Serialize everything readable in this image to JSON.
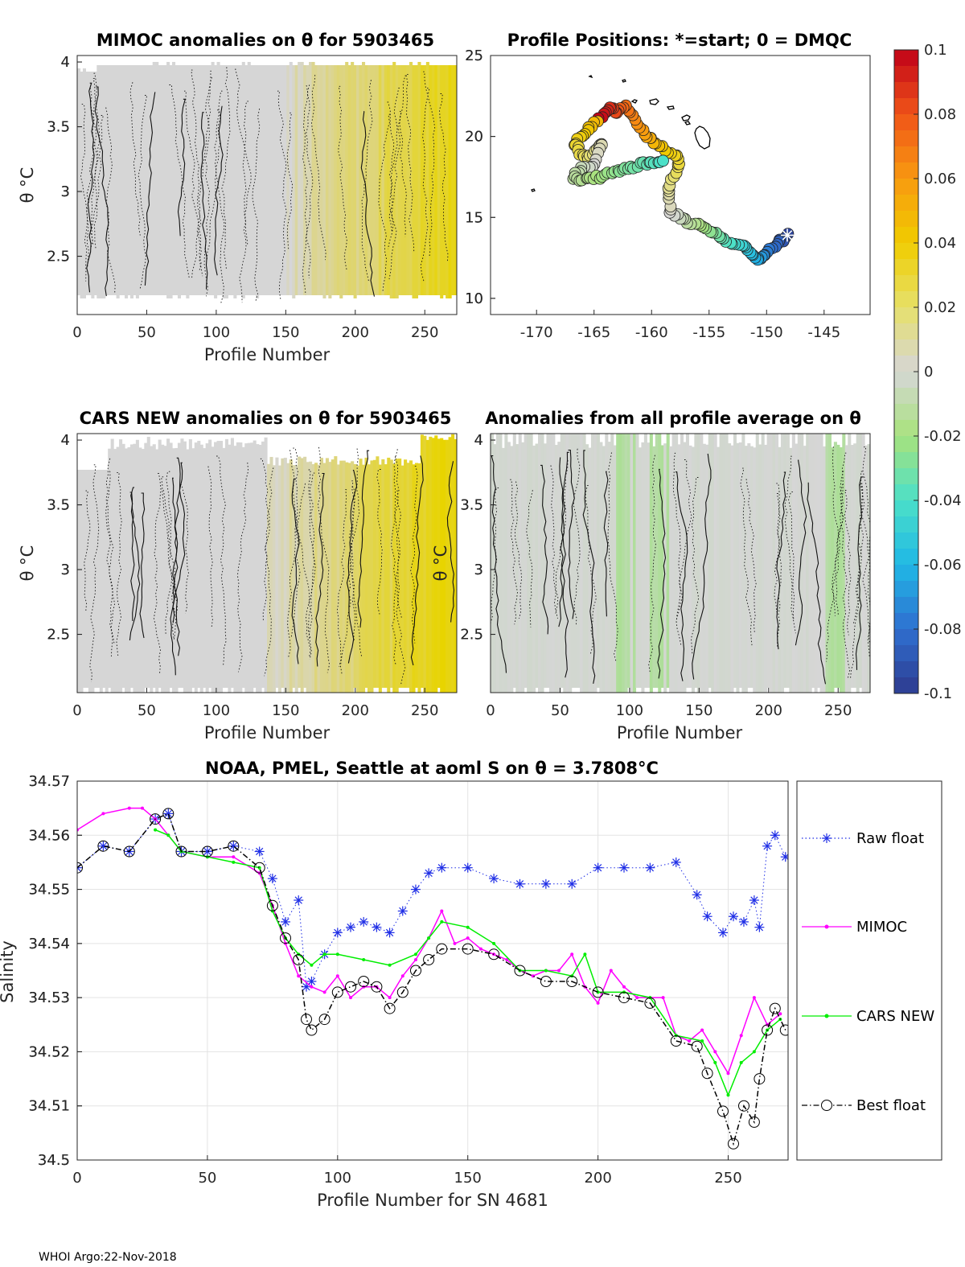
{
  "footer": "WHOI Argo:22-Nov-2018",
  "colors": {
    "raw": "#1f2ee6",
    "mimoc": "#ff00ff",
    "cars": "#00ee00",
    "best": "#000000",
    "field_neutral": "#d6d6d6",
    "field_warm": "#e8d400",
    "field_cool": "#a4e08a",
    "grid": "#e3e3e3",
    "axis": "#262626"
  },
  "colorbar": {
    "ticks": [
      "0.1",
      "0.08",
      "0.06",
      "0.04",
      "0.02",
      "0",
      "-0.02",
      "-0.04",
      "-0.06",
      "-0.08",
      "-0.1"
    ],
    "min": -0.1,
    "max": 0.1,
    "stops": [
      "#2e3b8f",
      "#2f6fd0",
      "#20b8e6",
      "#4be0c8",
      "#a8e27c",
      "#d6d6d6",
      "#e6e06a",
      "#f0cc00",
      "#f89a10",
      "#f05418",
      "#c00018"
    ]
  },
  "chart_data": [
    {
      "type": "heatmap",
      "title": "MIMOC anomalies on θ  for 5903465",
      "xlabel": "Profile Number",
      "ylabel": "θ °C",
      "xlim": [
        0,
        273
      ],
      "ylim": [
        2.05,
        4.05
      ],
      "xticks": [
        "0",
        "50",
        "100",
        "150",
        "200",
        "250"
      ],
      "yticks": [
        "4",
        "3.5",
        "3",
        "2.5"
      ],
      "data_range": [
        2.2,
        3.95
      ],
      "trend": "grey (~0) for profiles 0-150, increasingly yellow (~+0.02 to +0.03) toward profile 273"
    },
    {
      "type": "scatter",
      "title": "Profile Positions: *=start; 0 = DMQC",
      "xlim": [
        -174,
        -141
      ],
      "ylim": [
        9,
        25
      ],
      "xticks": [
        "-170",
        "-165",
        "-160",
        "-155",
        "-150",
        "-145"
      ],
      "yticks": [
        "25",
        "20",
        "15",
        "10"
      ],
      "track": [
        [
          -148.2,
          13.9
        ],
        [
          -148.8,
          13.5
        ],
        [
          -149.5,
          13.2
        ],
        [
          -150.3,
          12.6
        ],
        [
          -150.8,
          12.3
        ],
        [
          -151.4,
          12.9
        ],
        [
          -152.2,
          13.3
        ],
        [
          -153.2,
          13.5
        ],
        [
          -154.2,
          13.8
        ],
        [
          -155.2,
          14.3
        ],
        [
          -156.3,
          14.6
        ],
        [
          -157.3,
          14.9
        ],
        [
          -158.3,
          15.3
        ],
        [
          -158.6,
          16.3
        ],
        [
          -158.3,
          17.3
        ],
        [
          -157.6,
          18.0
        ],
        [
          -157.8,
          18.8
        ],
        [
          -158.8,
          19.2
        ],
        [
          -159.8,
          19.7
        ],
        [
          -160.6,
          20.2
        ],
        [
          -161.4,
          21.0
        ],
        [
          -162.2,
          21.8
        ],
        [
          -163.0,
          21.5
        ],
        [
          -163.6,
          21.8
        ],
        [
          -164.3,
          21.3
        ],
        [
          -165.2,
          20.6
        ],
        [
          -166.0,
          20.1
        ],
        [
          -166.7,
          19.5
        ],
        [
          -166.2,
          19.0
        ],
        [
          -165.5,
          18.6
        ],
        [
          -164.8,
          19.2
        ],
        [
          -164.3,
          19.6
        ],
        [
          -165.0,
          18.3
        ],
        [
          -166.0,
          18.0
        ],
        [
          -166.8,
          17.5
        ],
        [
          -166.0,
          17.3
        ],
        [
          -165.0,
          17.4
        ],
        [
          -164.0,
          17.6
        ],
        [
          -163.0,
          17.8
        ],
        [
          -162.0,
          18.0
        ],
        [
          -161.0,
          18.3
        ],
        [
          -160.0,
          18.4
        ],
        [
          -159.0,
          18.5
        ]
      ]
    },
    {
      "type": "heatmap",
      "title": "CARS NEW anomalies on θ for 5903465",
      "xlabel": "Profile Number",
      "ylabel": "θ °C",
      "xlim": [
        0,
        273
      ],
      "ylim": [
        2.05,
        4.05
      ],
      "xticks": [
        "0",
        "50",
        "100",
        "150",
        "200",
        "250"
      ],
      "yticks": [
        "4",
        "3.5",
        "3",
        "2.5"
      ],
      "data_range": [
        2.05,
        4.05
      ],
      "trend": "grey (~0) for profiles 0-130, yellow (~+0.02 to +0.035) toward profile 273"
    },
    {
      "type": "heatmap",
      "title": "Anomalies from all profile average on θ",
      "xlabel": "Profile Number",
      "ylabel": "θ °C",
      "xlim": [
        0,
        273
      ],
      "ylim": [
        2.05,
        4.05
      ],
      "xticks": [
        "0",
        "50",
        "100",
        "150",
        "200",
        "250"
      ],
      "yticks": [
        "4",
        "3.5",
        "3",
        "2.5"
      ],
      "data_range": [
        2.05,
        4.05
      ],
      "trend": "mostly grey (~0) with light green bands (~-0.01) near profiles 90-130 and 245"
    },
    {
      "type": "line",
      "title": "NOAA, PMEL, Seattle at aoml S on θ = 3.7808°C",
      "xlabel": "Profile Number for SN 4681",
      "ylabel": "Salinity",
      "xlim": [
        0,
        273
      ],
      "ylim": [
        34.5,
        34.57
      ],
      "xticks": [
        "0",
        "50",
        "100",
        "150",
        "200",
        "250"
      ],
      "yticks": [
        "34.57",
        "34.56",
        "34.55",
        "34.54",
        "34.53",
        "34.52",
        "34.51",
        "34.5"
      ],
      "legend": [
        "Raw float",
        "MIMOC",
        "CARS NEW",
        "Best float"
      ],
      "legend_position": "outside-right",
      "series": [
        {
          "name": "Raw float",
          "marker": "asterisk",
          "x": [
            0,
            10,
            20,
            30,
            35,
            40,
            50,
            60,
            70,
            75,
            80,
            85,
            88,
            90,
            95,
            100,
            105,
            110,
            115,
            120,
            125,
            130,
            135,
            140,
            150,
            160,
            170,
            180,
            190,
            200,
            210,
            220,
            230,
            238,
            242,
            248,
            252,
            256,
            260,
            262,
            265,
            268,
            272
          ],
          "values": [
            34.554,
            34.558,
            34.557,
            34.563,
            34.564,
            34.557,
            34.557,
            34.558,
            34.557,
            34.552,
            34.544,
            34.548,
            34.532,
            34.533,
            34.538,
            34.542,
            34.543,
            34.544,
            34.543,
            34.542,
            34.546,
            34.55,
            34.553,
            34.554,
            34.554,
            34.552,
            34.551,
            34.551,
            34.551,
            34.554,
            34.554,
            34.554,
            34.555,
            34.549,
            34.545,
            34.542,
            34.545,
            34.544,
            34.548,
            34.543,
            34.558,
            34.56,
            34.556
          ]
        },
        {
          "name": "MIMOC",
          "marker": "dot",
          "x": [
            0,
            10,
            20,
            25,
            30,
            35,
            40,
            50,
            60,
            70,
            75,
            80,
            85,
            90,
            95,
            100,
            105,
            110,
            115,
            120,
            125,
            130,
            135,
            140,
            145,
            150,
            155,
            160,
            165,
            170,
            175,
            180,
            185,
            190,
            195,
            200,
            205,
            210,
            215,
            220,
            225,
            230,
            235,
            240,
            245,
            250,
            255,
            260,
            265,
            270
          ],
          "values": [
            34.561,
            34.564,
            34.565,
            34.565,
            34.563,
            34.56,
            34.557,
            34.556,
            34.556,
            34.553,
            34.547,
            34.54,
            34.534,
            34.532,
            34.531,
            34.534,
            34.53,
            34.532,
            34.532,
            34.53,
            34.534,
            34.537,
            34.541,
            34.546,
            34.54,
            34.541,
            34.539,
            34.538,
            34.537,
            34.535,
            34.534,
            34.535,
            34.535,
            34.538,
            34.532,
            34.529,
            34.535,
            34.532,
            34.53,
            34.53,
            34.53,
            34.523,
            34.522,
            34.524,
            34.52,
            34.516,
            34.523,
            34.53,
            34.525,
            34.527
          ]
        },
        {
          "name": "CARS NEW",
          "marker": "dot",
          "x": [
            30,
            35,
            40,
            50,
            60,
            70,
            75,
            80,
            85,
            90,
            95,
            100,
            110,
            120,
            130,
            135,
            140,
            150,
            160,
            170,
            180,
            190,
            195,
            200,
            210,
            220,
            230,
            240,
            245,
            250,
            255,
            260,
            265,
            270
          ],
          "values": [
            34.561,
            34.56,
            34.557,
            34.556,
            34.555,
            34.554,
            34.546,
            34.541,
            34.538,
            34.536,
            34.538,
            34.538,
            34.537,
            34.536,
            34.538,
            34.541,
            34.544,
            34.543,
            34.54,
            34.535,
            34.535,
            34.534,
            34.538,
            34.531,
            34.531,
            34.53,
            34.523,
            34.522,
            34.518,
            34.512,
            34.518,
            34.52,
            34.524,
            34.526
          ]
        },
        {
          "name": "Best float",
          "marker": "circle",
          "x": [
            0,
            10,
            20,
            30,
            35,
            40,
            50,
            60,
            70,
            75,
            80,
            85,
            88,
            90,
            95,
            100,
            105,
            110,
            115,
            120,
            125,
            130,
            135,
            140,
            150,
            160,
            170,
            180,
            190,
            200,
            210,
            220,
            230,
            238,
            242,
            248,
            252,
            256,
            260,
            262,
            265,
            268,
            272
          ],
          "values": [
            34.554,
            34.558,
            34.557,
            34.563,
            34.564,
            34.557,
            34.557,
            34.558,
            34.554,
            34.547,
            34.541,
            34.537,
            34.526,
            34.524,
            34.526,
            34.531,
            34.532,
            34.533,
            34.532,
            34.528,
            34.531,
            34.535,
            34.537,
            34.539,
            34.539,
            34.538,
            34.535,
            34.533,
            34.533,
            34.531,
            34.53,
            34.529,
            34.522,
            34.521,
            34.516,
            34.509,
            34.503,
            34.51,
            34.507,
            34.515,
            34.524,
            34.528,
            34.524
          ]
        }
      ]
    }
  ]
}
